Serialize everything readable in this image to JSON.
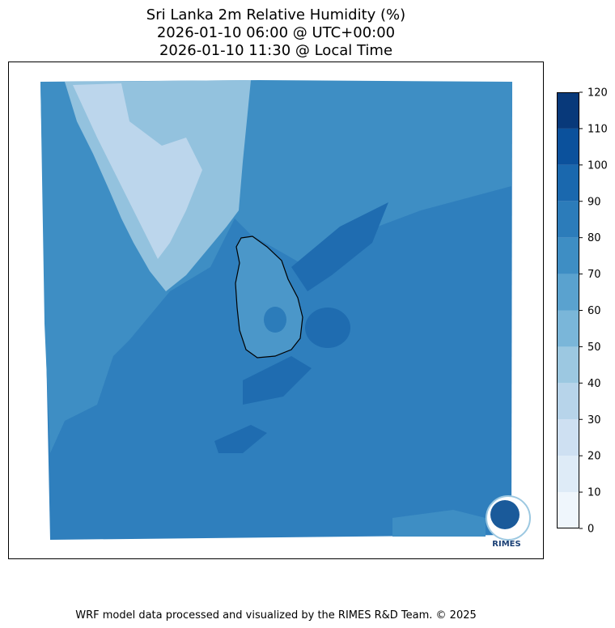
{
  "title": [
    "Sri Lanka 2m Relative Humidity (%)",
    "2026-01-10 06:00 @ UTC+00:00",
    "2026-01-10 11:30 @ Local Time"
  ],
  "colorbar": {
    "ticks": [
      0,
      10,
      20,
      30,
      40,
      50,
      60,
      70,
      80,
      90,
      100,
      110,
      120
    ],
    "colors": [
      "#eff6fc",
      "#deebf7",
      "#cee0f2",
      "#b7d4ea",
      "#9cc8e1",
      "#7ab6d9",
      "#5aa2cf",
      "#3e8ec4",
      "#2c7cba",
      "#1a68ae",
      "#0b519c",
      "#08397a"
    ]
  },
  "logo": "RIMES",
  "footer": "WRF model data processed and visualized by the RIMES R&D Team. © 2025"
}
